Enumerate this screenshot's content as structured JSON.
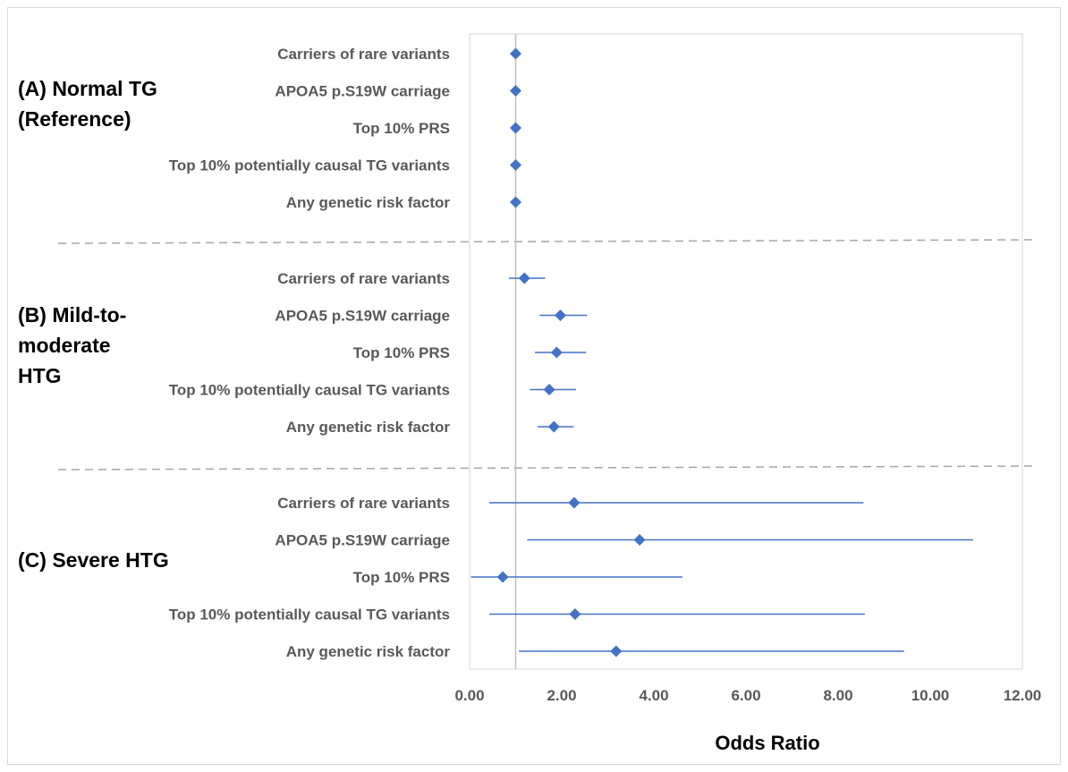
{
  "chart_data": {
    "type": "forest",
    "xlabel": "Odds Ratio",
    "xlim": [
      0,
      12
    ],
    "x_ticks": [
      "0.00",
      "2.00",
      "4.00",
      "6.00",
      "8.00",
      "10.00",
      "12.00"
    ],
    "reference_value": 1.0,
    "colors": {
      "marker": "#4472c4",
      "ci_line": "#4472c4",
      "reference": "#bfbfbf",
      "separator": "#a6a6a6"
    },
    "groups": [
      {
        "label_lines": [
          "(A) Normal TG",
          "(Reference)"
        ],
        "rows": [
          {
            "label": "Carriers of rare variants",
            "or": 1.0,
            "ci_low": 1.0,
            "ci_high": 1.0
          },
          {
            "label": "APOA5 p.S19W carriage",
            "or": 1.0,
            "ci_low": 1.0,
            "ci_high": 1.0
          },
          {
            "label": "Top 10% PRS",
            "or": 1.0,
            "ci_low": 1.0,
            "ci_high": 1.0
          },
          {
            "label": "Top 10% potentially causal TG variants",
            "or": 1.0,
            "ci_low": 1.0,
            "ci_high": 1.0
          },
          {
            "label": "Any genetic risk factor",
            "or": 1.0,
            "ci_low": 1.0,
            "ci_high": 1.0
          }
        ]
      },
      {
        "label_lines": [
          "(B) Mild-to-",
          "moderate",
          "HTG"
        ],
        "rows": [
          {
            "label": "Carriers of rare variants",
            "or": 1.19,
            "ci_low": 0.85,
            "ci_high": 1.64
          },
          {
            "label": "APOA5 p.S19W carriage",
            "or": 1.97,
            "ci_low": 1.52,
            "ci_high": 2.55
          },
          {
            "label": "Top 10% PRS",
            "or": 1.89,
            "ci_low": 1.42,
            "ci_high": 2.53
          },
          {
            "label": "Top 10% potentially causal TG variants",
            "or": 1.73,
            "ci_low": 1.31,
            "ci_high": 2.31
          },
          {
            "label": "Any genetic risk factor",
            "or": 1.83,
            "ci_low": 1.48,
            "ci_high": 2.26
          }
        ]
      },
      {
        "label_lines": [
          "(C) Severe HTG"
        ],
        "rows": [
          {
            "label": "Carriers of rare variants",
            "or": 2.27,
            "ci_low": 0.43,
            "ci_high": 8.55
          },
          {
            "label": "APOA5 p.S19W carriage",
            "or": 3.69,
            "ci_low": 1.25,
            "ci_high": 10.93
          },
          {
            "label": "Top 10% PRS",
            "or": 0.72,
            "ci_low": 0.03,
            "ci_high": 4.62
          },
          {
            "label": "Top 10% potentially causal TG variants",
            "or": 2.29,
            "ci_low": 0.43,
            "ci_high": 8.58
          },
          {
            "label": "Any genetic risk factor",
            "or": 3.18,
            "ci_low": 1.07,
            "ci_high": 9.43
          }
        ]
      }
    ]
  }
}
